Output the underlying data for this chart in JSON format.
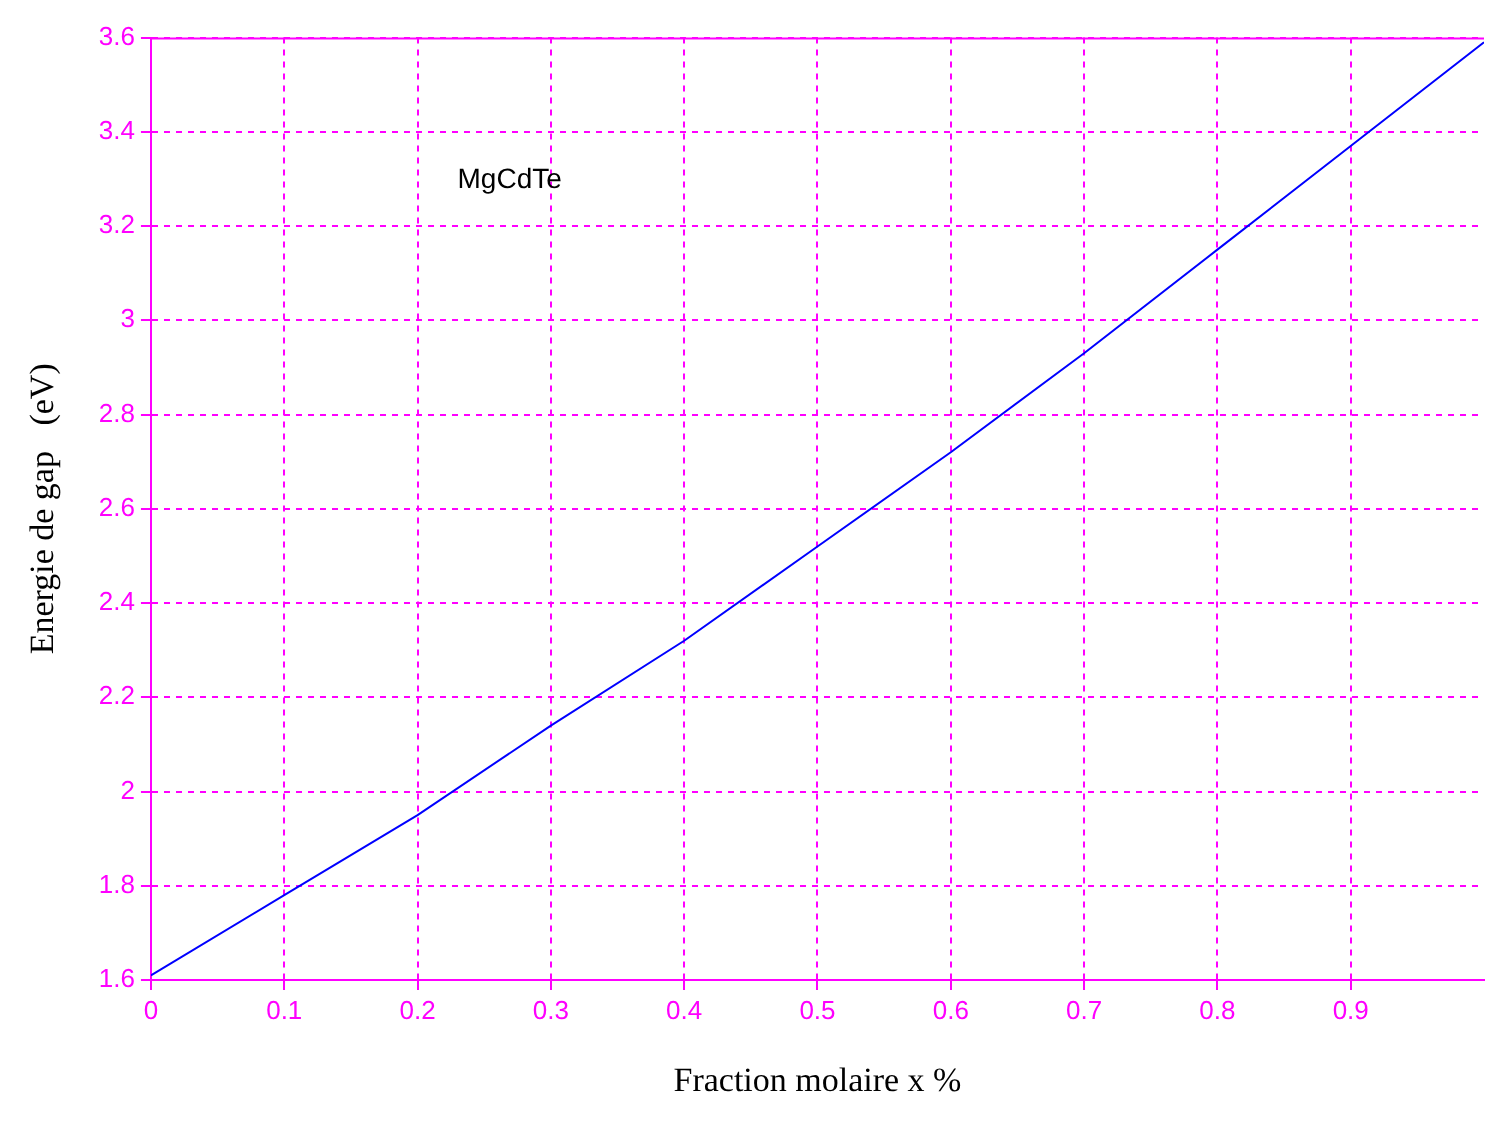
{
  "chart_data": {
    "type": "line",
    "xlabel": "Fraction molaire x %",
    "ylabel": "Energie de gap   (eV)",
    "annotations": [
      "MgCdTe"
    ],
    "x": [
      0,
      0.1,
      0.2,
      0.3,
      0.4,
      0.5,
      0.6,
      0.7,
      0.8,
      0.9,
      1.0
    ],
    "series": [
      {
        "color": "#0000ff",
        "values": [
          1.61,
          1.78,
          1.95,
          2.14,
          2.32,
          2.52,
          2.72,
          2.93,
          3.15,
          3.37,
          3.59
        ]
      }
    ],
    "xlim": [
      0,
      1
    ],
    "xticks": [
      0,
      0.1,
      0.2,
      0.3,
      0.4,
      0.5,
      0.6,
      0.7,
      0.8,
      0.9
    ],
    "ylim": [
      1.6,
      3.6
    ],
    "yticks": [
      1.6,
      1.8,
      2,
      2.2,
      2.4,
      2.6,
      2.8,
      3,
      3.2,
      3.4,
      3.6
    ],
    "grid": true,
    "line_style": "solid",
    "marker": "none",
    "legend": false
  }
}
